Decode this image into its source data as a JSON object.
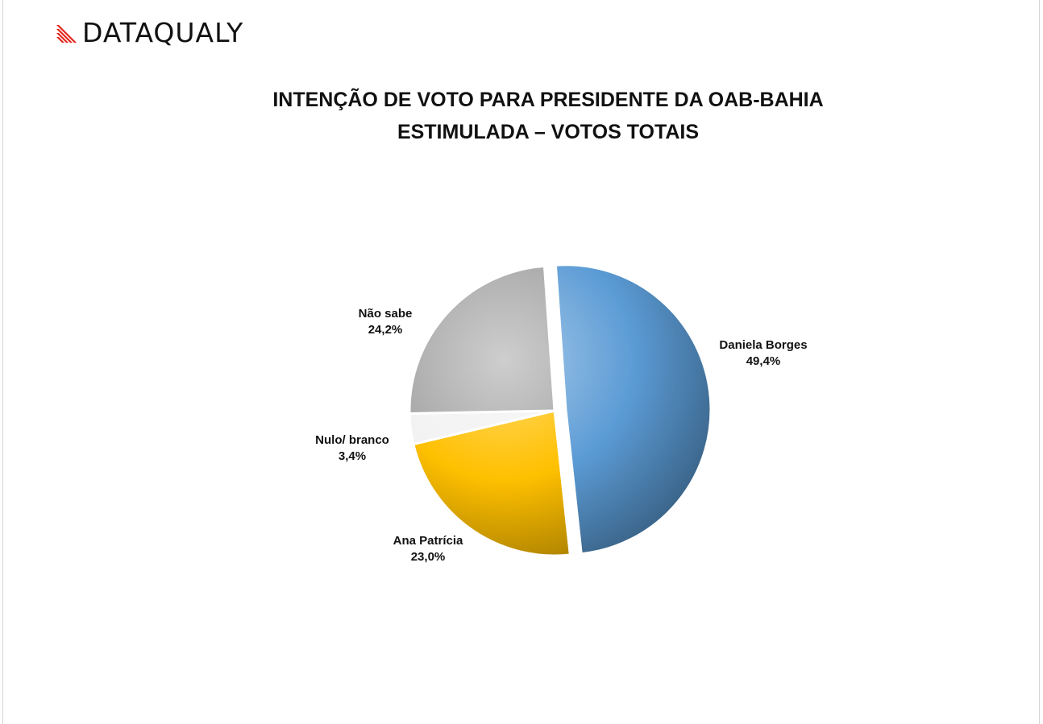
{
  "brand": {
    "name": "DATAQUALY",
    "accent_color": "#e2231a"
  },
  "chart_data": {
    "type": "pie",
    "title": "INTENÇÃO DE VOTO PARA PRESIDENTE DA OAB-BAHIA",
    "subtitle": "ESTIMULADA – VOTOS TOTAIS",
    "slices": [
      {
        "label": "Daniela Borges",
        "value": 49.4,
        "value_label": "49,4%",
        "color": "#5b9bd5",
        "exploded": true
      },
      {
        "label": "Ana Patrícia",
        "value": 23.0,
        "value_label": "23,0%",
        "color": "#ffc000",
        "exploded": false
      },
      {
        "label": "Nulo/ branco",
        "value": 3.4,
        "value_label": "3,4%",
        "color": "#f2f2f2",
        "exploded": false
      },
      {
        "label": "Não sabe",
        "value": 24.2,
        "value_label": "24,2%",
        "color": "#a6a6a6",
        "exploded": false
      }
    ],
    "start_angle_deg": -4,
    "direction": "clockwise",
    "style": "3d-shaded"
  }
}
